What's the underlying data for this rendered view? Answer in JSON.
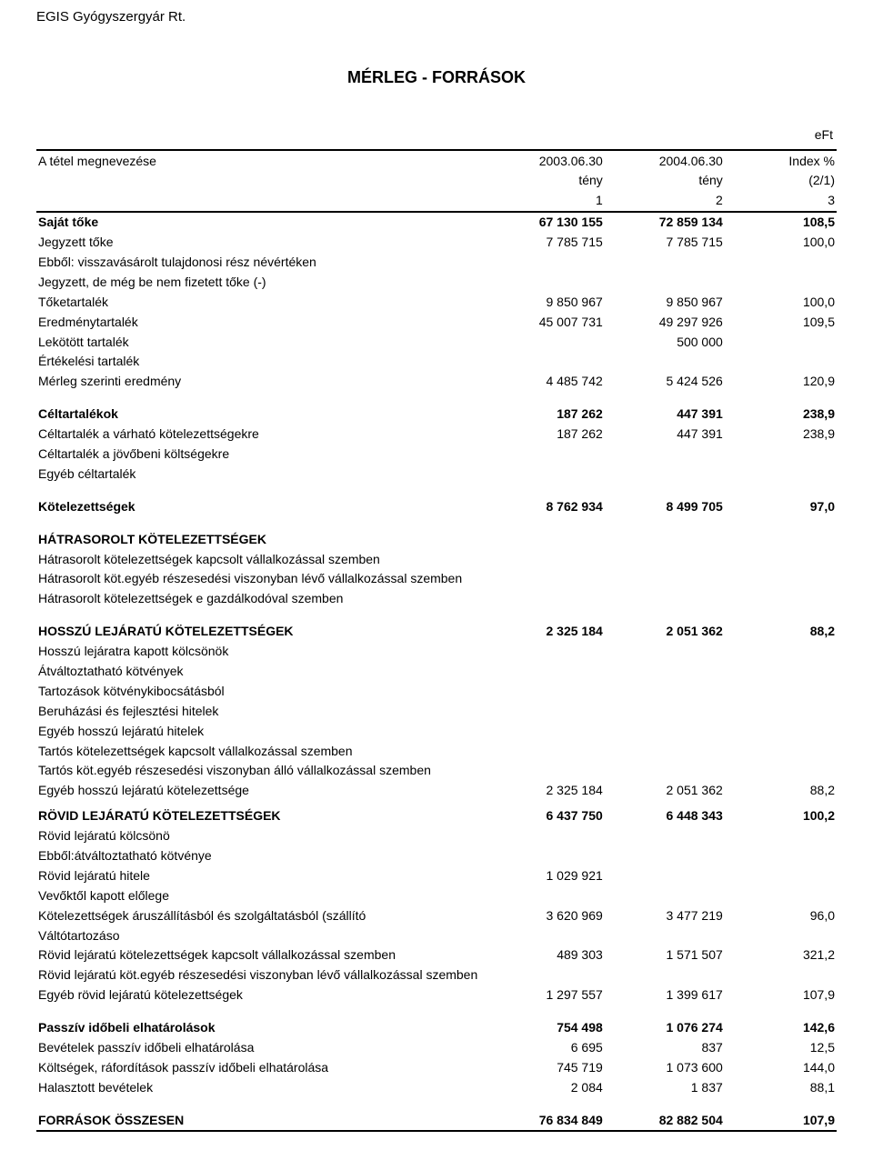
{
  "company": "EGIS Gyógyszergyár Rt.",
  "title": "MÉRLEG - FORRÁSOK",
  "unit": "eFt",
  "header": {
    "label": "A tétel megnevezése",
    "col1": "2003.06.30",
    "col2": "2004.06.30",
    "col3": "Index %",
    "sub1": "tény",
    "sub2": "tény",
    "sub3": "(2/1)",
    "n_label": "",
    "n1": "1",
    "n2": "2",
    "n3": "3"
  },
  "rows": [
    {
      "label": "Saját tőke",
      "v1": "67 130 155",
      "v2": "72 859 134",
      "v3": "108,5",
      "bold": true,
      "indent": 0
    },
    {
      "label": "Jegyzett tőke",
      "v1": "7 785 715",
      "v2": "7 785 715",
      "v3": "100,0",
      "indent": 1
    },
    {
      "label": "Ebből: visszavásárolt tulajdonosi rész névértéken",
      "indent": 2
    },
    {
      "label": "Jegyzett, de még be nem fizetett tőke (-)",
      "indent": 1
    },
    {
      "label": "Tőketartalék",
      "v1": "9 850 967",
      "v2": "9 850 967",
      "v3": "100,0",
      "indent": 1
    },
    {
      "label": "Eredménytartalék",
      "v1": "45 007 731",
      "v2": "49 297 926",
      "v3": "109,5",
      "indent": 1
    },
    {
      "label": "Lekötött tartalék",
      "v2": "500 000",
      "indent": 1
    },
    {
      "label": "Értékelési tartalék",
      "indent": 1
    },
    {
      "label": "Mérleg szerinti eredmény",
      "v1": "4 485 742",
      "v2": "5 424 526",
      "v3": "120,9",
      "indent": 1
    },
    {
      "spacer": true
    },
    {
      "label": "Céltartalékok",
      "v1": "187 262",
      "v2": "447 391",
      "v3": "238,9",
      "bold": true,
      "indent": 0
    },
    {
      "label": "Céltartalék a várható kötelezettségekre",
      "v1": "187 262",
      "v2": "447 391",
      "v3": "238,9",
      "indent": 1
    },
    {
      "label": "Céltartalék a jövőbeni költségekre",
      "indent": 1
    },
    {
      "label": "Egyéb céltartalék",
      "indent": 1
    },
    {
      "spacer": true
    },
    {
      "label": "Kötelezettségek",
      "v1": "8 762 934",
      "v2": "8 499 705",
      "v3": "97,0",
      "bold": true,
      "indent": 0
    },
    {
      "spacer": true
    },
    {
      "label": "HÁTRASOROLT KÖTELEZETTSÉGEK",
      "bold": true,
      "indent": 0
    },
    {
      "label": "Hátrasorolt kötelezettségek kapcsolt vállalkozással szemben",
      "indent": 1
    },
    {
      "label": "Hátrasorolt köt.egyéb részesedési viszonyban lévő vállalkozással szemben",
      "indent": 1
    },
    {
      "label": "Hátrasorolt kötelezettségek e gazdálkodóval szemben",
      "indent": 1
    },
    {
      "spacer": true
    },
    {
      "label": "HOSSZÚ LEJÁRATÚ KÖTELEZETTSÉGEK",
      "v1": "2 325 184",
      "v2": "2 051 362",
      "v3": "88,2",
      "bold": true,
      "indent": 0
    },
    {
      "label": "Hosszú lejáratra kapott kölcsönök",
      "indent": 1
    },
    {
      "label": "Átváltoztatható kötvények",
      "indent": 1
    },
    {
      "label": "Tartozások kötvénykibocsátásból",
      "indent": 1
    },
    {
      "label": "Beruházási és fejlesztési hitelek",
      "indent": 1
    },
    {
      "label": "Egyéb hosszú lejáratú hitelek",
      "indent": 1
    },
    {
      "label": "Tartós kötelezettségek kapcsolt vállalkozással szemben",
      "indent": 1
    },
    {
      "label": "Tartós köt.egyéb részesedési viszonyban álló vállalkozással szemben",
      "indent": 1
    },
    {
      "label": "Egyéb hosszú lejáratú kötelezettsége",
      "v1": "2 325 184",
      "v2": "2 051 362",
      "v3": "88,2",
      "indent": 1
    },
    {
      "spacer": true,
      "short": true
    },
    {
      "label": "RÖVID LEJÁRATÚ KÖTELEZETTSÉGEK",
      "v1": "6 437 750",
      "v2": "6 448 343",
      "v3": "100,2",
      "bold": true,
      "indent": 0
    },
    {
      "label": "Rövid lejáratú kölcsönö",
      "indent": 1
    },
    {
      "label": "Ebből:átváltoztatható kötvénye",
      "indent": 2
    },
    {
      "label": "Rövid lejáratú hitele",
      "v1": "1 029 921",
      "indent": 1
    },
    {
      "label": "Vevőktől kapott előlege",
      "indent": 1
    },
    {
      "label": "Kötelezettségek áruszállításból és szolgáltatásból (szállító",
      "v1": "3 620 969",
      "v2": "3 477 219",
      "v3": "96,0",
      "indent": 1
    },
    {
      "label": "Váltótartozáso",
      "indent": 1
    },
    {
      "label": "Rövid lejáratú kötelezettségek kapcsolt vállalkozással szemben",
      "v1": "489 303",
      "v2": "1 571 507",
      "v3": "321,2",
      "indent": 1
    },
    {
      "label": "Rövid lejáratú köt.egyéb részesedési viszonyban lévő vállalkozással szemben",
      "indent": 1
    },
    {
      "label": "Egyéb rövid lejáratú kötelezettségek",
      "v1": "1 297 557",
      "v2": "1 399 617",
      "v3": "107,9",
      "indent": 1
    },
    {
      "spacer": true
    },
    {
      "label": "Passzív időbeli elhatárolások",
      "v1": "754 498",
      "v2": "1 076 274",
      "v3": "142,6",
      "bold": true,
      "indent": 0
    },
    {
      "label": "Bevételek passzív időbeli elhatárolása",
      "v1": "6 695",
      "v2": "837",
      "v3": "12,5",
      "indent": 1
    },
    {
      "label": "Költségek, ráfordítások passzív időbeli elhatárolása",
      "v1": "745 719",
      "v2": "1 073 600",
      "v3": "144,0",
      "indent": 1
    },
    {
      "label": "Halasztott bevételek",
      "v1": "2 084",
      "v2": "1 837",
      "v3": "88,1",
      "indent": 1
    },
    {
      "spacer": true
    },
    {
      "label": "FORRÁSOK ÖSSZESEN",
      "v1": "76 834 849",
      "v2": "82 882 504",
      "v3": "107,9",
      "bold": true,
      "indent": 0,
      "final": true
    }
  ]
}
